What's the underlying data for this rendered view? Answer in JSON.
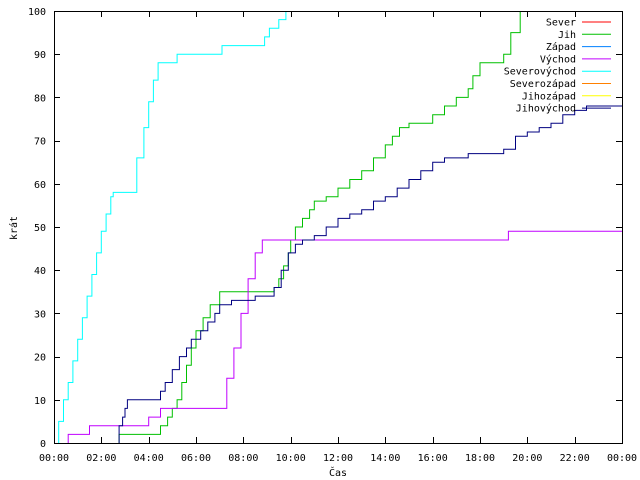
{
  "chart_data": {
    "type": "line",
    "title": "",
    "xlabel": "Čas",
    "ylabel": "krát",
    "xlim": [
      0,
      24
    ],
    "ylim": [
      0,
      100
    ],
    "x_ticks": [
      0,
      2,
      4,
      6,
      8,
      10,
      12,
      14,
      16,
      18,
      20,
      22,
      24
    ],
    "x_tick_labels": [
      "00:00",
      "02:00",
      "04:00",
      "06:00",
      "08:00",
      "10:00",
      "12:00",
      "14:00",
      "16:00",
      "18:00",
      "20:00",
      "22:00",
      "00:00"
    ],
    "y_ticks": [
      0,
      10,
      20,
      30,
      40,
      50,
      60,
      70,
      80,
      90,
      100
    ],
    "grid": false,
    "legend_position": "top-right",
    "series": [
      {
        "name": "Sever",
        "color": "#ff0000",
        "step": true,
        "x": [],
        "y": []
      },
      {
        "name": "Jih",
        "color": "#00c000",
        "step": true,
        "x": [
          2.75,
          4.5,
          4.8,
          5.0,
          5.2,
          5.4,
          5.6,
          5.8,
          6.0,
          6.3,
          6.6,
          7.0,
          9.3,
          9.5,
          9.7,
          9.9,
          10.0,
          10.2,
          10.5,
          10.8,
          11.0,
          11.5,
          12.0,
          12.5,
          13.0,
          13.5,
          14.0,
          14.3,
          14.6,
          15.0,
          16.0,
          16.5,
          17.0,
          17.5,
          17.7,
          18.0,
          19.0,
          19.3,
          19.7
        ],
        "y": [
          2,
          4,
          6,
          8,
          10,
          14,
          18,
          22,
          26,
          29,
          32,
          35,
          36,
          38,
          41,
          44,
          47,
          50,
          52,
          54,
          56,
          57,
          59,
          61,
          63,
          66,
          69,
          71,
          73,
          74,
          76,
          78,
          80,
          82,
          85,
          88,
          90,
          95,
          100
        ]
      },
      {
        "name": "Západ",
        "color": "#0080ff",
        "step": true,
        "x": [],
        "y": []
      },
      {
        "name": "Východ",
        "color": "#c000ff",
        "step": true,
        "x": [
          0.6,
          1.5,
          4.0,
          4.5,
          7.0,
          7.3,
          7.6,
          7.9,
          8.2,
          8.5,
          8.8,
          9.0,
          19.2
        ],
        "y": [
          2,
          4,
          6,
          8,
          8,
          15,
          22,
          30,
          38,
          44,
          47,
          47,
          49
        ]
      },
      {
        "name": "Severovýchod",
        "color": "#00ffff",
        "step": true,
        "x": [
          0.2,
          0.4,
          0.6,
          0.8,
          1.0,
          1.2,
          1.4,
          1.6,
          1.8,
          2.0,
          2.2,
          2.4,
          2.5,
          3.2,
          3.5,
          3.8,
          4.0,
          4.2,
          4.4,
          4.6,
          4.9,
          5.2,
          7.1,
          8.9,
          9.1,
          9.5,
          9.8
        ],
        "y": [
          5,
          10,
          14,
          19,
          24,
          29,
          34,
          39,
          44,
          49,
          53,
          57,
          58,
          58,
          66,
          73,
          79,
          84,
          88,
          88,
          88,
          90,
          92,
          94,
          96,
          98,
          100
        ]
      },
      {
        "name": "Severozápad",
        "color": "#ff8000",
        "step": true,
        "x": [],
        "y": []
      },
      {
        "name": "Jihozápad",
        "color": "#ffff00",
        "step": true,
        "x": [],
        "y": []
      },
      {
        "name": "Jihovýchod",
        "color": "#000080",
        "step": true,
        "x": [
          2.75,
          2.9,
          3.0,
          3.1,
          3.2,
          4.5,
          4.7,
          5.0,
          5.3,
          5.6,
          5.8,
          6.2,
          6.5,
          6.8,
          7.0,
          7.5,
          8.0,
          8.5,
          9.0,
          9.3,
          9.6,
          9.9,
          10.2,
          10.5,
          11.0,
          11.5,
          12.0,
          12.5,
          13.0,
          13.5,
          14.0,
          14.5,
          15.0,
          15.5,
          16.0,
          16.5,
          17.0,
          17.5,
          18.0,
          18.5,
          19.0,
          19.5,
          20.0,
          20.5,
          21.0,
          21.5,
          22.0,
          22.5
        ],
        "y": [
          4,
          6,
          8,
          10,
          10,
          12,
          14,
          17,
          20,
          22,
          24,
          26,
          28,
          30,
          32,
          33,
          33,
          34,
          34,
          36,
          40,
          44,
          46,
          47,
          48,
          50,
          52,
          53,
          54,
          56,
          57,
          59,
          61,
          63,
          65,
          66,
          66,
          67,
          67,
          67,
          68,
          71,
          72,
          73,
          74,
          76,
          77,
          78
        ]
      }
    ]
  }
}
